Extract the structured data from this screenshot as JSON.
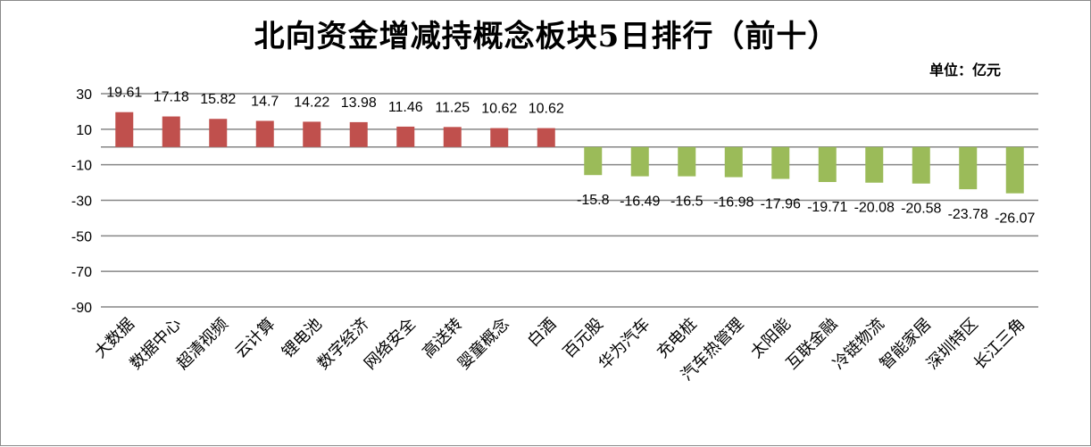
{
  "chart_data": {
    "type": "bar",
    "title": "北向资金增减持概念板块5日排行（前十）",
    "unit_label": "单位：亿元",
    "categories": [
      "大数据",
      "数据中心",
      "超清视频",
      "云计算",
      "锂电池",
      "数字经济",
      "网络安全",
      "高送转",
      "婴童概念",
      "白酒",
      "百元股",
      "华为汽车",
      "充电桩",
      "汽车热管理",
      "太阳能",
      "互联金融",
      "冷链物流",
      "智能家居",
      "深圳特区",
      "长江三角"
    ],
    "values": [
      19.61,
      17.18,
      15.82,
      14.7,
      14.22,
      13.98,
      11.46,
      11.25,
      10.62,
      10.62,
      -15.8,
      -16.49,
      -16.5,
      -16.98,
      -17.96,
      -19.71,
      -20.08,
      -20.58,
      -23.78,
      -26.07
    ],
    "value_labels": [
      "19.61",
      "17.18",
      "15.82",
      "14.7",
      "14.22",
      "13.98",
      "11.46",
      "11.25",
      "10.62",
      "10.62",
      "-15.8",
      "-16.49",
      "-16.5",
      "-16.98",
      "-17.96",
      "-19.71",
      "-20.08",
      "-20.58",
      "-23.78",
      "-26.07"
    ],
    "ylim": [
      -90,
      30
    ],
    "yticks": [
      30,
      10,
      -10,
      -30,
      -50,
      -70,
      -90
    ],
    "ytick_labels": [
      "30",
      "10",
      "-10",
      "-30",
      "-50",
      "-70",
      "-90"
    ],
    "grid": true,
    "positive_color": "#c0504d",
    "negative_color": "#9bbb59",
    "gridline_color": "#868686"
  }
}
